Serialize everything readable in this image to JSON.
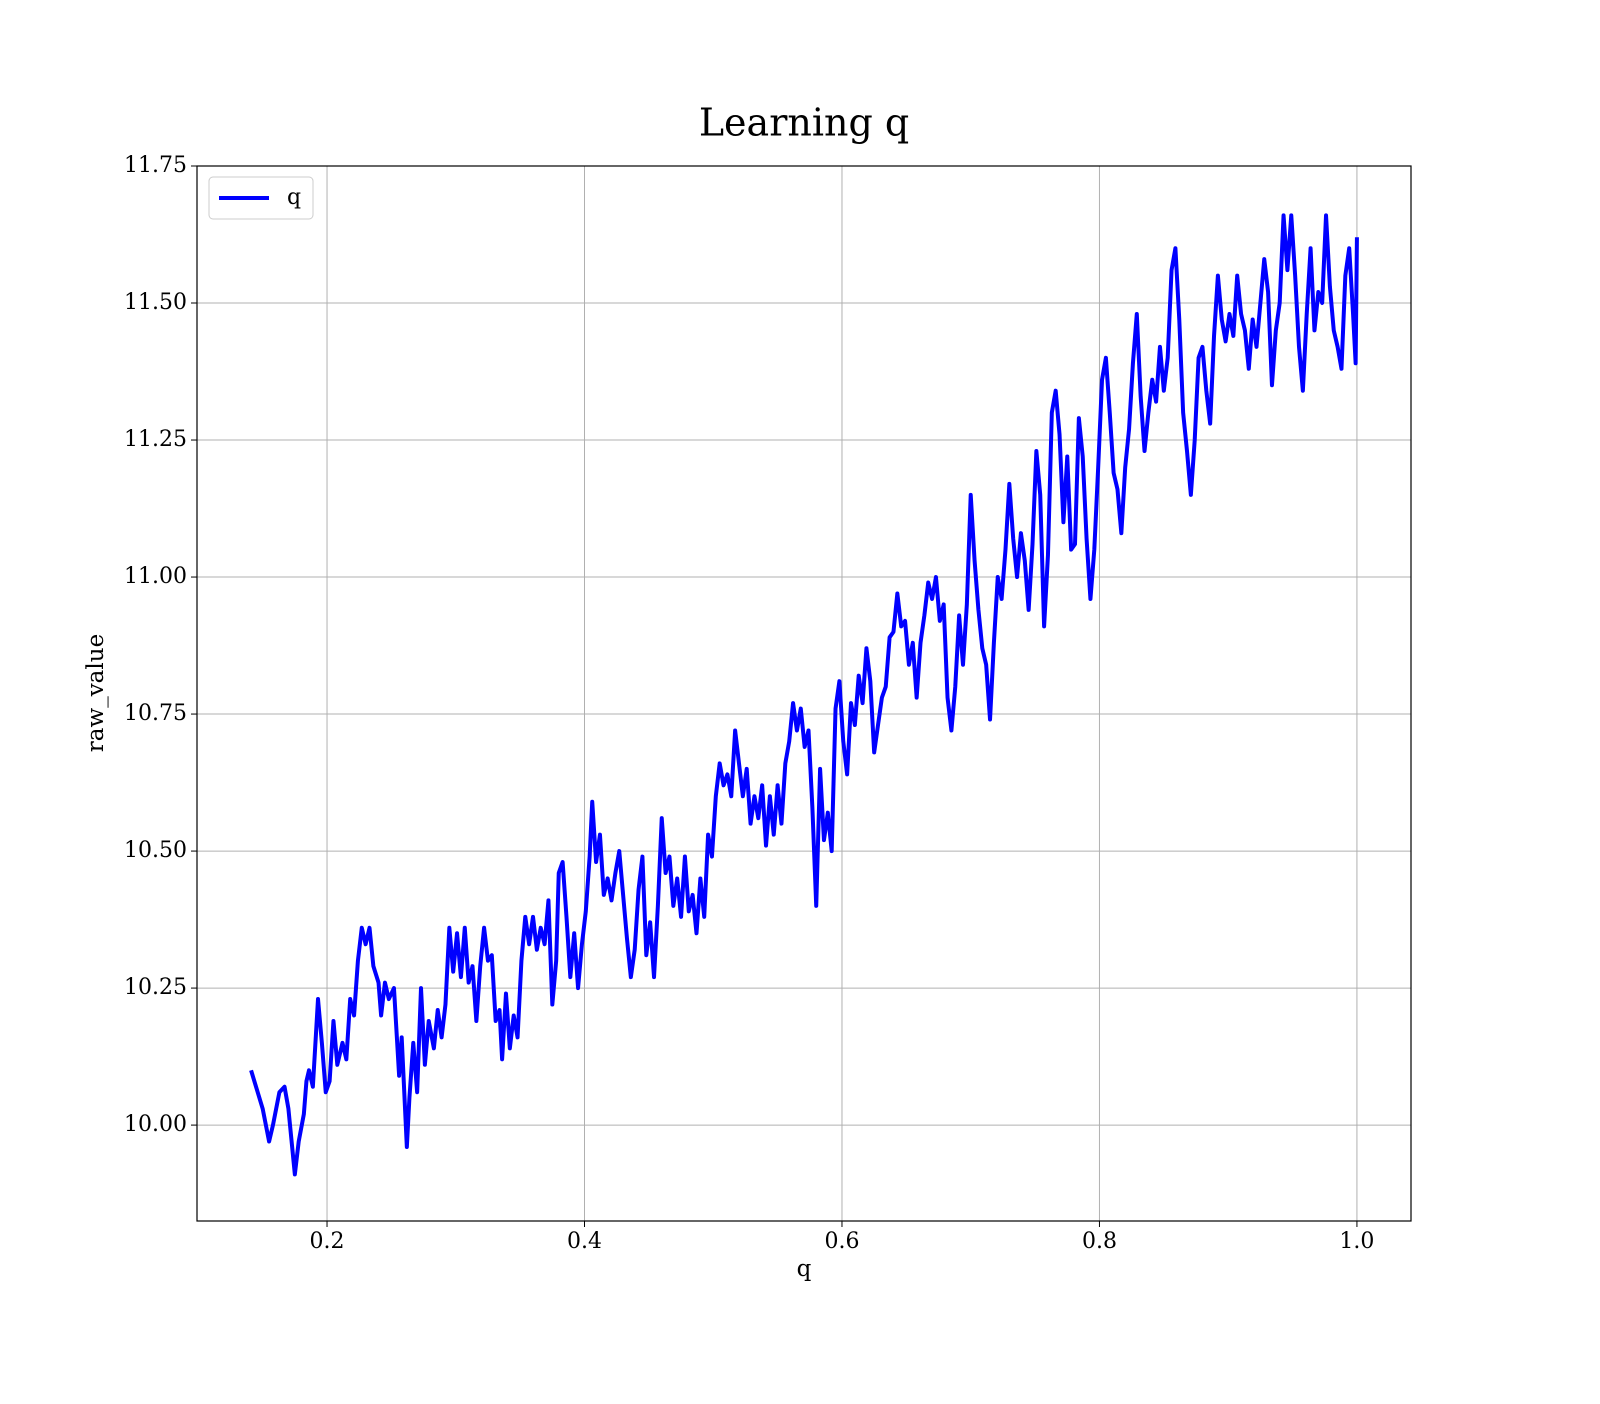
{
  "chart_data": {
    "type": "line",
    "title": "Learning q",
    "x_label": "q",
    "y_label": "raw_value",
    "x": [
      0.141,
      0.15,
      0.155,
      0.158,
      0.163,
      0.167,
      0.17,
      0.175,
      0.178,
      0.182,
      0.184,
      0.186,
      0.189,
      0.193,
      0.196,
      0.199,
      0.202,
      0.205,
      0.208,
      0.212,
      0.215,
      0.218,
      0.221,
      0.224,
      0.227,
      0.23,
      0.233,
      0.236,
      0.24,
      0.242,
      0.245,
      0.248,
      0.252,
      0.256,
      0.258,
      0.262,
      0.264,
      0.267,
      0.27,
      0.273,
      0.276,
      0.279,
      0.283,
      0.286,
      0.289,
      0.292,
      0.295,
      0.298,
      0.301,
      0.304,
      0.307,
      0.31,
      0.313,
      0.316,
      0.319,
      0.322,
      0.325,
      0.328,
      0.331,
      0.334,
      0.336,
      0.339,
      0.342,
      0.345,
      0.348,
      0.351,
      0.354,
      0.357,
      0.36,
      0.363,
      0.366,
      0.369,
      0.372,
      0.375,
      0.378,
      0.38,
      0.383,
      0.386,
      0.389,
      0.392,
      0.395,
      0.398,
      0.401,
      0.404,
      0.406,
      0.409,
      0.412,
      0.415,
      0.418,
      0.421,
      0.424,
      0.427,
      0.43,
      0.433,
      0.436,
      0.439,
      0.442,
      0.445,
      0.448,
      0.451,
      0.454,
      0.457,
      0.46,
      0.463,
      0.466,
      0.469,
      0.472,
      0.475,
      0.478,
      0.481,
      0.484,
      0.487,
      0.49,
      0.493,
      0.496,
      0.499,
      0.502,
      0.505,
      0.508,
      0.511,
      0.514,
      0.517,
      0.52,
      0.523,
      0.526,
      0.529,
      0.532,
      0.535,
      0.538,
      0.541,
      0.544,
      0.547,
      0.55,
      0.553,
      0.556,
      0.559,
      0.562,
      0.565,
      0.568,
      0.571,
      0.574,
      0.577,
      0.58,
      0.583,
      0.586,
      0.589,
      0.592,
      0.595,
      0.598,
      0.601,
      0.604,
      0.607,
      0.61,
      0.613,
      0.616,
      0.619,
      0.622,
      0.625,
      0.628,
      0.631,
      0.634,
      0.637,
      0.64,
      0.643,
      0.646,
      0.649,
      0.652,
      0.655,
      0.658,
      0.661,
      0.664,
      0.667,
      0.67,
      0.673,
      0.676,
      0.679,
      0.682,
      0.685,
      0.688,
      0.691,
      0.694,
      0.697,
      0.7,
      0.703,
      0.706,
      0.709,
      0.712,
      0.715,
      0.718,
      0.721,
      0.724,
      0.727,
      0.73,
      0.733,
      0.736,
      0.739,
      0.742,
      0.745,
      0.748,
      0.751,
      0.754,
      0.757,
      0.76,
      0.763,
      0.766,
      0.769,
      0.772,
      0.775,
      0.778,
      0.781,
      0.784,
      0.787,
      0.79,
      0.793,
      0.796,
      0.799,
      0.802,
      0.805,
      0.808,
      0.811,
      0.814,
      0.817,
      0.82,
      0.823,
      0.826,
      0.829,
      0.832,
      0.835,
      0.838,
      0.841,
      0.844,
      0.847,
      0.85,
      0.853,
      0.856,
      0.859,
      0.862,
      0.865,
      0.868,
      0.871,
      0.874,
      0.877,
      0.88,
      0.883,
      0.886,
      0.889,
      0.892,
      0.895,
      0.898,
      0.901,
      0.904,
      0.907,
      0.91,
      0.913,
      0.916,
      0.919,
      0.922,
      0.925,
      0.928,
      0.931,
      0.934,
      0.937,
      0.94,
      0.943,
      0.946,
      0.949,
      0.952,
      0.955,
      0.958,
      0.961,
      0.964,
      0.967,
      0.97,
      0.973,
      0.976,
      0.979,
      0.982,
      0.985,
      0.988,
      0.991,
      0.994,
      0.997,
      0.999,
      1.0
    ],
    "series": [
      {
        "name": "q",
        "color": "#0000ff",
        "values": [
          10.1,
          10.03,
          9.97,
          10.0,
          10.06,
          10.07,
          10.03,
          9.91,
          9.97,
          10.02,
          10.08,
          10.1,
          10.07,
          10.23,
          10.15,
          10.06,
          10.08,
          10.19,
          10.11,
          10.15,
          10.12,
          10.23,
          10.2,
          10.3,
          10.36,
          10.33,
          10.36,
          10.29,
          10.26,
          10.2,
          10.26,
          10.23,
          10.25,
          10.09,
          10.16,
          9.96,
          10.05,
          10.15,
          10.06,
          10.25,
          10.11,
          10.19,
          10.14,
          10.21,
          10.16,
          10.22,
          10.36,
          10.28,
          10.35,
          10.27,
          10.36,
          10.26,
          10.29,
          10.19,
          10.29,
          10.36,
          10.3,
          10.31,
          10.19,
          10.21,
          10.12,
          10.24,
          10.14,
          10.2,
          10.16,
          10.3,
          10.38,
          10.33,
          10.38,
          10.32,
          10.36,
          10.33,
          10.41,
          10.22,
          10.3,
          10.46,
          10.48,
          10.38,
          10.27,
          10.35,
          10.25,
          10.33,
          10.39,
          10.49,
          10.59,
          10.48,
          10.53,
          10.42,
          10.45,
          10.41,
          10.46,
          10.5,
          10.42,
          10.34,
          10.27,
          10.32,
          10.43,
          10.49,
          10.31,
          10.37,
          10.27,
          10.4,
          10.56,
          10.46,
          10.49,
          10.4,
          10.45,
          10.38,
          10.49,
          10.39,
          10.42,
          10.35,
          10.45,
          10.38,
          10.53,
          10.49,
          10.6,
          10.66,
          10.62,
          10.64,
          10.6,
          10.72,
          10.66,
          10.6,
          10.65,
          10.55,
          10.6,
          10.56,
          10.62,
          10.51,
          10.6,
          10.53,
          10.62,
          10.55,
          10.66,
          10.7,
          10.77,
          10.72,
          10.76,
          10.69,
          10.72,
          10.58,
          10.4,
          10.65,
          10.52,
          10.57,
          10.5,
          10.76,
          10.81,
          10.7,
          10.64,
          10.77,
          10.73,
          10.82,
          10.77,
          10.87,
          10.81,
          10.68,
          10.73,
          10.78,
          10.8,
          10.89,
          10.9,
          10.97,
          10.91,
          10.92,
          10.84,
          10.88,
          10.78,
          10.88,
          10.93,
          10.99,
          10.96,
          11.0,
          10.92,
          10.95,
          10.78,
          10.72,
          10.8,
          10.93,
          10.84,
          10.95,
          11.15,
          11.03,
          10.94,
          10.87,
          10.84,
          10.74,
          10.88,
          11.0,
          10.96,
          11.05,
          11.17,
          11.07,
          11.0,
          11.08,
          11.03,
          10.94,
          11.06,
          11.23,
          11.15,
          10.91,
          11.04,
          11.3,
          11.34,
          11.26,
          11.1,
          11.22,
          11.05,
          11.06,
          11.29,
          11.22,
          11.07,
          10.96,
          11.05,
          11.2,
          11.36,
          11.4,
          11.3,
          11.19,
          11.16,
          11.08,
          11.2,
          11.27,
          11.39,
          11.48,
          11.33,
          11.23,
          11.3,
          11.36,
          11.32,
          11.42,
          11.34,
          11.4,
          11.56,
          11.6,
          11.47,
          11.3,
          11.23,
          11.15,
          11.25,
          11.4,
          11.42,
          11.34,
          11.28,
          11.44,
          11.55,
          11.47,
          11.43,
          11.48,
          11.44,
          11.55,
          11.48,
          11.45,
          11.38,
          11.47,
          11.42,
          11.5,
          11.58,
          11.52,
          11.35,
          11.45,
          11.5,
          11.66,
          11.56,
          11.66,
          11.55,
          11.42,
          11.34,
          11.48,
          11.6,
          11.45,
          11.52,
          11.5,
          11.66,
          11.53,
          11.45,
          11.42,
          11.38,
          11.55,
          11.6,
          11.48,
          11.39,
          11.62
        ]
      }
    ],
    "xlim": [
      0.099,
      1.042
    ],
    "ylim": [
      9.825,
      11.75
    ],
    "xticks": [
      0.2,
      0.4,
      0.6,
      0.8,
      {
        "value": 1,
        "label": "1.0"
      }
    ],
    "yticks": [
      {
        "value": 10,
        "label": "10.00"
      },
      10.25,
      {
        "value": 10.5,
        "label": "10.50"
      },
      10.75,
      {
        "value": 11,
        "label": "11.00"
      },
      11.25,
      {
        "value": 11.5,
        "label": "11.50"
      },
      11.75
    ],
    "grid": true,
    "legend": "upper left"
  }
}
